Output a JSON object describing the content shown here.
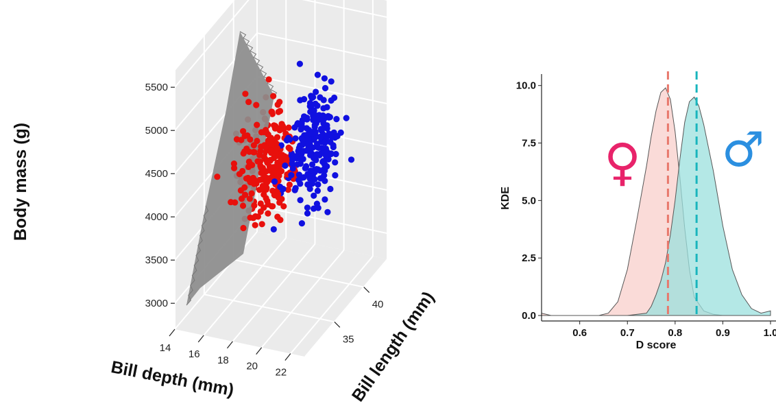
{
  "chart_data": [
    {
      "type": "scatter",
      "projection": "3d",
      "xlabel": "Bill depth (mm)",
      "ylabel": "Bill length (mm)",
      "zlabel": "Body mass (g)",
      "xlim": [
        14,
        23
      ],
      "ylim": [
        30,
        44
      ],
      "zlim": [
        2700,
        5700
      ],
      "xticks": [
        "14",
        "16",
        "18",
        "20",
        "22"
      ],
      "yticks": [
        "35",
        "40"
      ],
      "zticks": [
        "3000",
        "3500",
        "4000",
        "4500",
        "5000",
        "5500"
      ],
      "grid": true,
      "background": "#ebebeb",
      "separating_plane": {
        "color": "#8c8c8c",
        "present": true
      },
      "series": [
        {
          "color": "#e8100c",
          "n_points": 260,
          "x_range": [
            14.2,
            19.8
          ],
          "y_range": [
            32,
            44
          ],
          "z_range": [
            2900,
            5250
          ]
        },
        {
          "color": "#1010e0",
          "n_points": 220,
          "x_range": [
            17.8,
            22.8
          ],
          "y_range": [
            32,
            44
          ],
          "z_range": [
            3200,
            5650
          ]
        }
      ]
    },
    {
      "type": "area",
      "xlabel": "D score",
      "ylabel": "KDE",
      "xlim": [
        0.52,
        1.0
      ],
      "ylim": [
        0,
        10.2
      ],
      "xticks": [
        "0.6",
        "0.7",
        "0.8",
        "0.9",
        "1.0"
      ],
      "yticks": [
        "0.0",
        "2.5",
        "5.0",
        "7.5",
        "10.0"
      ],
      "symbols": {
        "female": "♀",
        "male": "♂"
      },
      "symbol_colors": {
        "female": "#e8236a",
        "male": "#2b8fe0"
      },
      "series": [
        {
          "color": "#f8cfcb",
          "mean_line": 0.785,
          "mean_line_color": "#e8786c",
          "x": [
            0.52,
            0.54,
            0.56,
            0.58,
            0.6,
            0.62,
            0.64,
            0.66,
            0.68,
            0.7,
            0.72,
            0.74,
            0.75,
            0.76,
            0.77,
            0.78,
            0.79,
            0.8,
            0.81,
            0.82,
            0.83,
            0.84,
            0.86,
            0.88,
            0.9,
            0.92
          ],
          "y": [
            0.1,
            0.0,
            0.0,
            0.0,
            0.0,
            0.0,
            0.0,
            0.1,
            0.6,
            2.0,
            4.2,
            6.5,
            7.8,
            8.9,
            9.7,
            9.9,
            9.4,
            8.0,
            6.0,
            3.8,
            2.0,
            0.8,
            0.2,
            0.05,
            0.0,
            0.0
          ]
        },
        {
          "color": "#9be0dd",
          "mean_line": 0.845,
          "mean_line_color": "#19b5bd",
          "x": [
            0.7,
            0.74,
            0.75,
            0.76,
            0.77,
            0.78,
            0.79,
            0.8,
            0.81,
            0.82,
            0.83,
            0.84,
            0.85,
            0.86,
            0.87,
            0.88,
            0.89,
            0.9,
            0.92,
            0.94,
            0.96,
            0.98,
            1.0
          ],
          "y": [
            0.0,
            0.1,
            0.4,
            0.9,
            1.5,
            2.3,
            3.5,
            5.0,
            6.8,
            8.4,
            9.3,
            9.5,
            9.1,
            8.3,
            7.3,
            6.3,
            5.1,
            3.9,
            2.0,
            0.9,
            0.3,
            0.1,
            0.2
          ]
        }
      ]
    }
  ]
}
